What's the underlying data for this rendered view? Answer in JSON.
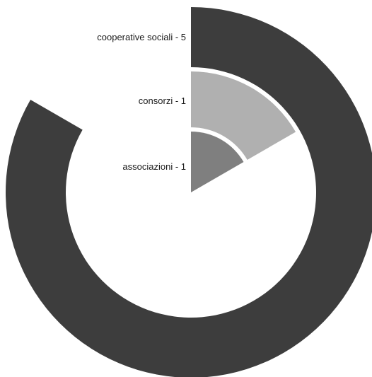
{
  "chart_data": {
    "type": "radial-bar",
    "title": "",
    "max_value": 6,
    "series": [
      {
        "label": "cooperative sociali - 5",
        "category": "cooperative sociali",
        "value": 5,
        "color": "#3d3d3d"
      },
      {
        "label": "consorzi - 1",
        "category": "consorzi",
        "value": 1,
        "color": "#b0b0b0"
      },
      {
        "label": "associazioni - 1",
        "category": "associazioni",
        "value": 1,
        "color": "#7f7f7f"
      }
    ]
  }
}
